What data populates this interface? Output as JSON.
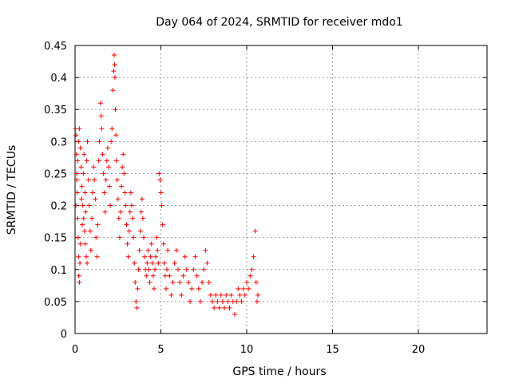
{
  "chart_data": {
    "type": "scatter",
    "title": "Day 064 of 2024, SRMTID for receiver mdo1",
    "xlabel": "GPS time / hours",
    "ylabel": "SRMTID / TECUs",
    "xlim": [
      0,
      24
    ],
    "ylim": [
      0,
      0.45
    ],
    "xticks": [
      0,
      5,
      10,
      15,
      20
    ],
    "yticks": [
      0,
      0.05,
      0.1,
      0.15,
      0.2,
      0.25,
      0.3,
      0.35,
      0.4,
      0.45
    ],
    "xtick_labels": [
      "0",
      "5",
      "10",
      "15",
      "20"
    ],
    "ytick_labels": [
      "0",
      "0.05",
      "0.1",
      "0.15",
      "0.2",
      "0.25",
      "0.3",
      "0.35",
      "0.4",
      "0.45"
    ],
    "grid": true,
    "marker": "+",
    "color": "#ff0000",
    "series": [
      {
        "points": [
          [
            0.02,
            0.32
          ],
          [
            0.05,
            0.31
          ],
          [
            0.08,
            0.28
          ],
          [
            0.1,
            0.25
          ],
          [
            0.12,
            0.22
          ],
          [
            0.15,
            0.18
          ],
          [
            0.18,
            0.15
          ],
          [
            0.2,
            0.12
          ],
          [
            0.22,
            0.09
          ],
          [
            0.25,
            0.08
          ],
          [
            0.28,
            0.11
          ],
          [
            0.3,
            0.14
          ],
          [
            0.05,
            0.2
          ],
          [
            0.1,
            0.24
          ],
          [
            0.15,
            0.27
          ],
          [
            0.2,
            0.3
          ],
          [
            0.25,
            0.32
          ],
          [
            0.3,
            0.29
          ],
          [
            0.35,
            0.26
          ],
          [
            0.4,
            0.23
          ],
          [
            0.45,
            0.2
          ],
          [
            0.5,
            0.18
          ],
          [
            0.55,
            0.16
          ],
          [
            0.6,
            0.14
          ],
          [
            0.65,
            0.12
          ],
          [
            0.7,
            0.11
          ],
          [
            0.38,
            0.21
          ],
          [
            0.42,
            0.17
          ],
          [
            0.48,
            0.25
          ],
          [
            0.52,
            0.28
          ],
          [
            0.58,
            0.22
          ],
          [
            0.62,
            0.19
          ],
          [
            0.68,
            0.27
          ],
          [
            0.72,
            0.3
          ],
          [
            0.78,
            0.24
          ],
          [
            0.82,
            0.2
          ],
          [
            0.88,
            0.16
          ],
          [
            0.92,
            0.13
          ],
          [
            0.98,
            0.18
          ],
          [
            1.02,
            0.22
          ],
          [
            1.08,
            0.26
          ],
          [
            1.12,
            0.24
          ],
          [
            1.18,
            0.21
          ],
          [
            1.22,
            0.15
          ],
          [
            1.28,
            0.12
          ],
          [
            1.32,
            0.17
          ],
          [
            1.38,
            0.27
          ],
          [
            1.42,
            0.3
          ],
          [
            1.48,
            0.36
          ],
          [
            1.52,
            0.34
          ],
          [
            1.55,
            0.32
          ],
          [
            1.6,
            0.28
          ],
          [
            1.65,
            0.25
          ],
          [
            1.7,
            0.22
          ],
          [
            1.75,
            0.19
          ],
          [
            1.8,
            0.24
          ],
          [
            1.85,
            0.27
          ],
          [
            1.9,
            0.29
          ],
          [
            1.95,
            0.26
          ],
          [
            2.0,
            0.23
          ],
          [
            2.05,
            0.2
          ],
          [
            2.1,
            0.3
          ],
          [
            2.15,
            0.32
          ],
          [
            2.2,
            0.38
          ],
          [
            2.25,
            0.41
          ],
          [
            2.28,
            0.435
          ],
          [
            2.3,
            0.42
          ],
          [
            2.32,
            0.4
          ],
          [
            2.35,
            0.35
          ],
          [
            2.38,
            0.31
          ],
          [
            2.4,
            0.27
          ],
          [
            2.45,
            0.24
          ],
          [
            2.5,
            0.21
          ],
          [
            2.55,
            0.18
          ],
          [
            2.6,
            0.15
          ],
          [
            2.65,
            0.19
          ],
          [
            2.7,
            0.23
          ],
          [
            2.75,
            0.26
          ],
          [
            2.8,
            0.28
          ],
          [
            2.85,
            0.25
          ],
          [
            2.9,
            0.22
          ],
          [
            2.95,
            0.2
          ],
          [
            3.0,
            0.17
          ],
          [
            3.05,
            0.14
          ],
          [
            3.1,
            0.12
          ],
          [
            3.15,
            0.16
          ],
          [
            3.2,
            0.19
          ],
          [
            3.25,
            0.22
          ],
          [
            3.3,
            0.2
          ],
          [
            3.35,
            0.18
          ],
          [
            3.4,
            0.15
          ],
          [
            3.45,
            0.11
          ],
          [
            3.5,
            0.08
          ],
          [
            3.55,
            0.05
          ],
          [
            3.6,
            0.04
          ],
          [
            3.65,
            0.07
          ],
          [
            3.7,
            0.1
          ],
          [
            3.75,
            0.13
          ],
          [
            3.8,
            0.16
          ],
          [
            3.85,
            0.19
          ],
          [
            3.9,
            0.21
          ],
          [
            3.95,
            0.18
          ],
          [
            4.0,
            0.15
          ],
          [
            4.05,
            0.12
          ],
          [
            4.1,
            0.1
          ],
          [
            4.15,
            0.09
          ],
          [
            4.2,
            0.11
          ],
          [
            4.25,
            0.13
          ],
          [
            4.3,
            0.1
          ],
          [
            4.35,
            0.08
          ],
          [
            4.4,
            0.12
          ],
          [
            4.45,
            0.14
          ],
          [
            4.5,
            0.11
          ],
          [
            4.55,
            0.09
          ],
          [
            4.6,
            0.07
          ],
          [
            4.65,
            0.1
          ],
          [
            4.7,
            0.12
          ],
          [
            4.75,
            0.15
          ],
          [
            4.8,
            0.13
          ],
          [
            4.85,
            0.11
          ],
          [
            4.9,
            0.25
          ],
          [
            4.95,
            0.24
          ],
          [
            5.0,
            0.22
          ],
          [
            5.05,
            0.2
          ],
          [
            5.1,
            0.17
          ],
          [
            5.15,
            0.14
          ],
          [
            5.2,
            0.11
          ],
          [
            5.25,
            0.09
          ],
          [
            5.3,
            0.07
          ],
          [
            5.35,
            0.1
          ],
          [
            5.4,
            0.13
          ],
          [
            5.5,
            0.09
          ],
          [
            5.6,
            0.06
          ],
          [
            5.7,
            0.08
          ],
          [
            5.8,
            0.11
          ],
          [
            5.9,
            0.13
          ],
          [
            6.0,
            0.1
          ],
          [
            6.1,
            0.08
          ],
          [
            6.2,
            0.06
          ],
          [
            6.3,
            0.09
          ],
          [
            6.4,
            0.12
          ],
          [
            6.5,
            0.1
          ],
          [
            6.6,
            0.08
          ],
          [
            6.7,
            0.05
          ],
          [
            6.8,
            0.07
          ],
          [
            6.9,
            0.1
          ],
          [
            7.0,
            0.12
          ],
          [
            7.1,
            0.09
          ],
          [
            7.2,
            0.07
          ],
          [
            7.3,
            0.05
          ],
          [
            7.4,
            0.08
          ],
          [
            7.5,
            0.1
          ],
          [
            7.6,
            0.13
          ],
          [
            7.7,
            0.11
          ],
          [
            7.8,
            0.08
          ],
          [
            7.9,
            0.06
          ],
          [
            8.0,
            0.05
          ],
          [
            8.1,
            0.04
          ],
          [
            8.2,
            0.06
          ],
          [
            8.3,
            0.05
          ],
          [
            8.4,
            0.04
          ],
          [
            8.5,
            0.06
          ],
          [
            8.6,
            0.05
          ],
          [
            8.7,
            0.04
          ],
          [
            8.8,
            0.06
          ],
          [
            8.9,
            0.05
          ],
          [
            9.0,
            0.04
          ],
          [
            9.1,
            0.06
          ],
          [
            9.2,
            0.05
          ],
          [
            9.3,
            0.03
          ],
          [
            9.4,
            0.05
          ],
          [
            9.5,
            0.07
          ],
          [
            9.6,
            0.06
          ],
          [
            9.7,
            0.05
          ],
          [
            9.8,
            0.07
          ],
          [
            9.9,
            0.06
          ],
          [
            10.0,
            0.08
          ],
          [
            10.1,
            0.07
          ],
          [
            10.2,
            0.09
          ],
          [
            10.3,
            0.1
          ],
          [
            10.4,
            0.12
          ],
          [
            10.5,
            0.16
          ],
          [
            10.55,
            0.08
          ],
          [
            10.6,
            0.05
          ],
          [
            10.65,
            0.06
          ]
        ]
      }
    ]
  }
}
